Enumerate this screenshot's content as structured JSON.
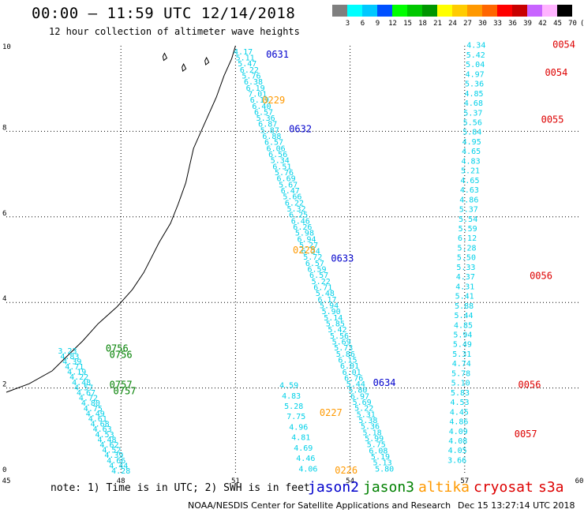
{
  "header": {
    "title": "00:00 – 11:59 UTC 12/14/2018",
    "subtitle": "12 hour collection of altimeter wave heights"
  },
  "colorbar": {
    "labels": [
      "3",
      "6",
      "9",
      "12",
      "15",
      "18",
      "21",
      "24",
      "27",
      "30",
      "33",
      "36",
      "39",
      "42",
      "45",
      "70",
      "(ft)"
    ],
    "colors": [
      "#7f7f7f",
      "#00ffff",
      "#00c8ff",
      "#0050ff",
      "#00ff00",
      "#00c800",
      "#009600",
      "#ffff00",
      "#ffcc00",
      "#ff9900",
      "#ff6600",
      "#ff0000",
      "#c80000",
      "#c864ff",
      "#ffb4ff",
      "#000000"
    ]
  },
  "axes": {
    "x_ticks": [
      "45",
      "48",
      "51",
      "54",
      "57",
      "60"
    ],
    "y_ticks": [
      "0",
      "2",
      "4",
      "6",
      "8",
      "10"
    ],
    "xlim": [
      45,
      60
    ],
    "ylim": [
      0,
      10
    ]
  },
  "satellites": {
    "jason2": {
      "name": "jason2",
      "color": "#0000cc"
    },
    "jason3": {
      "name": "jason3",
      "color": "#008000"
    },
    "altika": {
      "name": "altika",
      "color": "#ff9900"
    },
    "cryosat": {
      "name": "cryosat",
      "color": "#dd0000"
    },
    "s3a": {
      "name": "s3a",
      "color": "#dd0000"
    }
  },
  "chart_data": {
    "type": "scatter",
    "tracks": [
      {
        "id": "a",
        "lon_start": 51.2,
        "lat_start": 9.8,
        "lon_end": 54.9,
        "lat_end": 0.05,
        "values": [
          "4.17",
          "5.11",
          "5.47",
          "6.22",
          "5.76",
          "6.38",
          "6.19",
          "7.01",
          "6.19",
          "6.40",
          "6.57",
          "5.36",
          "6.87",
          "5.87",
          "6.88",
          "6.57",
          "6.06",
          "6.56",
          "5.34",
          "6.51",
          "5.76",
          "6.69",
          "5.67",
          "6.47",
          "5.66",
          "6.22",
          "5.32",
          "6.25",
          "6.46",
          "6.26",
          "5.98",
          "6.94",
          "5.27",
          "6.24",
          "5.72",
          "6.57",
          "6.59",
          "6.57",
          "5.22",
          "6.71",
          "5.48",
          "6.17",
          "5.94",
          "5.90",
          "5.14",
          "5.85",
          "5.42",
          "5.56",
          "5.69",
          "5.73",
          "5.86",
          "6.15",
          "6.01",
          "6.01",
          "6.76",
          "5.44",
          "5.80",
          "6.97",
          "5.69",
          "5.22",
          "5.31",
          "5.38",
          "5.36",
          "5.18",
          "5.99",
          "5.75",
          "6.08",
          "5.19",
          "5.13",
          "5.80"
        ]
      },
      {
        "id": "b",
        "lon_start": 57.3,
        "lat_start": 9.95,
        "lon_end": 56.8,
        "lat_end": 0.25,
        "values": [
          "4.34",
          "5.42",
          "5.04",
          "4.97",
          "5.36",
          "4.85",
          "4.68",
          "5.37",
          "5.56",
          "5.84",
          "4.95",
          "4.65",
          "4.83",
          "5.21",
          "4.65",
          "4.63",
          "4.86",
          "5.37",
          "5.54",
          "5.59",
          "6.12",
          "5.28",
          "5.50",
          "5.33",
          "4.37",
          "4.31",
          "5.41",
          "5.88",
          "5.44",
          "4.85",
          "5.94",
          "5.49",
          "5.31",
          "4.74",
          "5.78",
          "5.10",
          "5.83",
          "4.53",
          "4.45",
          "4.86",
          "4.09",
          "4.08",
          "4.05",
          "3.66"
        ]
      },
      {
        "id": "c",
        "lon_start": 46.6,
        "lat_start": 2.8,
        "lon_end": 48.0,
        "lat_end": 0.0,
        "values": [
          "3.23",
          "4.83",
          "4.39",
          "4.71",
          "4.19",
          "4.22",
          "4.48",
          "4.57",
          "4.67",
          "4.72",
          "4.80",
          "4.75",
          "4.49",
          "4.61",
          "4.68",
          "4.63",
          "4.53",
          "4.48",
          "4.62",
          "4.52",
          "4.39",
          "4.66",
          "4.44",
          "4.28"
        ]
      },
      {
        "id": "d",
        "lon_start": 52.4,
        "lat_start": 2.0,
        "lon_end": 52.9,
        "lat_end": 0.05,
        "values": [
          "4.59",
          "4.83",
          "5.28",
          "7.75",
          "4.96",
          "4.81",
          "4.69",
          "4.46",
          "4.06"
        ]
      },
      {
        "id": "e",
        "lon_start": 53.8,
        "lat_start": 0.05,
        "lon_end": 53.8,
        "lat_end": 0.05,
        "values": []
      }
    ],
    "time_labels": [
      {
        "text": "0631",
        "sat": "jason2",
        "lon": 51.8,
        "lat": 9.72
      },
      {
        "text": "0229",
        "sat": "altika",
        "lon": 51.7,
        "lat": 8.65
      },
      {
        "text": "0632",
        "sat": "jason2",
        "lon": 52.4,
        "lat": 7.98
      },
      {
        "text": "0228",
        "sat": "altika",
        "lon": 52.5,
        "lat": 5.15
      },
      {
        "text": "0633",
        "sat": "jason2",
        "lon": 53.5,
        "lat": 4.95
      },
      {
        "text": "0634",
        "sat": "jason2",
        "lon": 54.6,
        "lat": 2.05
      },
      {
        "text": "0227",
        "sat": "altika",
        "lon": 53.2,
        "lat": 1.35
      },
      {
        "text": "0226",
        "sat": "altika",
        "lon": 53.6,
        "lat": 0.0
      },
      {
        "text": "0756",
        "sat": "jason3",
        "lon": 47.6,
        "lat": 2.85
      },
      {
        "text": "0756",
        "sat": "jason3",
        "lon": 47.7,
        "lat": 2.7
      },
      {
        "text": "0757",
        "sat": "jason3",
        "lon": 47.7,
        "lat": 2.0
      },
      {
        "text": "0757",
        "sat": "jason3",
        "lon": 47.8,
        "lat": 1.85
      },
      {
        "text": "0054",
        "sat": "cryosat",
        "lon": 59.3,
        "lat": 9.95
      },
      {
        "text": "0054",
        "sat": "cryosat",
        "lon": 59.1,
        "lat": 9.3
      },
      {
        "text": "0055",
        "sat": "cryosat",
        "lon": 59.0,
        "lat": 8.2
      },
      {
        "text": "0056",
        "sat": "cryosat",
        "lon": 58.7,
        "lat": 4.55
      },
      {
        "text": "0056",
        "sat": "cryosat",
        "lon": 58.4,
        "lat": 2.0
      },
      {
        "text": "0057",
        "sat": "cryosat",
        "lon": 58.3,
        "lat": 0.85
      }
    ]
  },
  "footer": {
    "note": "note: 1) Time is in UTC; 2) SWH is in feet",
    "credit": "NOAA/NESDIS Center for Satellite Applications and Research",
    "timestamp": "Dec 15 13:27:14 UTC 2018"
  }
}
